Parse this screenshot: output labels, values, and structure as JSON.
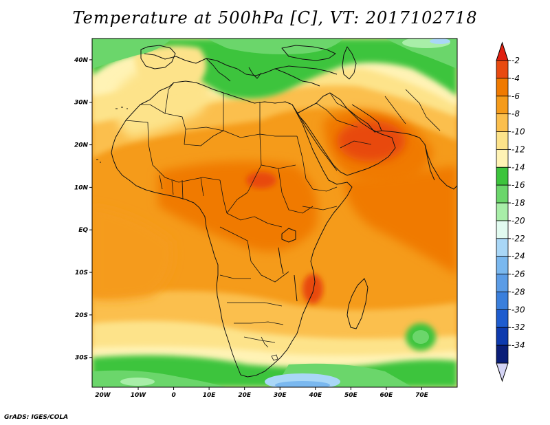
{
  "title": "Temperature at 500hPa [C], VT: 2017102718",
  "credit": "GrADS: IGES/COLA",
  "map": {
    "lon_range": [
      -23,
      80
    ],
    "lat_range": [
      -37,
      45
    ],
    "lon_ticks": [
      {
        "value": -20,
        "label": "20W"
      },
      {
        "value": -10,
        "label": "10W"
      },
      {
        "value": 0,
        "label": "0"
      },
      {
        "value": 10,
        "label": "10E"
      },
      {
        "value": 20,
        "label": "20E"
      },
      {
        "value": 30,
        "label": "30E"
      },
      {
        "value": 40,
        "label": "40E"
      },
      {
        "value": 50,
        "label": "50E"
      },
      {
        "value": 60,
        "label": "60E"
      },
      {
        "value": 70,
        "label": "70E"
      }
    ],
    "lat_ticks": [
      {
        "value": 40,
        "label": "40N"
      },
      {
        "value": 30,
        "label": "30N"
      },
      {
        "value": 20,
        "label": "20N"
      },
      {
        "value": 10,
        "label": "10N"
      },
      {
        "value": 0,
        "label": "EQ"
      },
      {
        "value": -10,
        "label": "10S"
      },
      {
        "value": -20,
        "label": "20S"
      },
      {
        "value": -30,
        "label": "30S"
      }
    ]
  },
  "colorbar": {
    "labels": [
      "-2",
      "-4",
      "-6",
      "-8",
      "-10",
      "-12",
      "-14",
      "-16",
      "-18",
      "-20",
      "-22",
      "-24",
      "-26",
      "-28",
      "-30",
      "-32",
      "-34"
    ],
    "colors": [
      "#e84a10",
      "#f07a00",
      "#f59b1a",
      "#fbbf4d",
      "#fde38a",
      "#fff3b5",
      "#3cc43c",
      "#6bd66b",
      "#a8eea8",
      "#e2fbf0",
      "#a9d7f7",
      "#7ab8ef",
      "#5b9ce6",
      "#3a7fdc",
      "#1e5ccf",
      "#0d3aae",
      "#0a1e78"
    ],
    "top_arrow_color": "#e02010",
    "bottom_arrow_color": "#d4d4f5"
  }
}
